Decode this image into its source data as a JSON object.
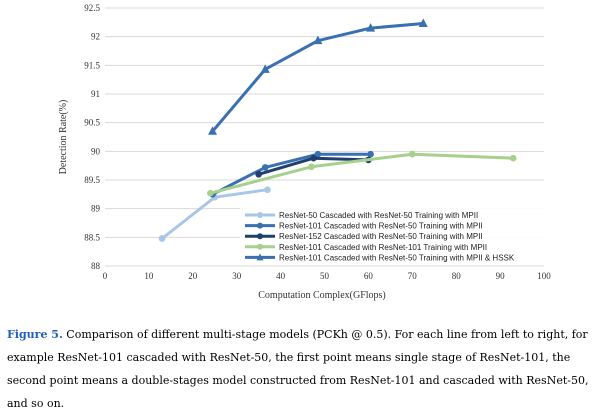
{
  "chart_data": {
    "type": "line",
    "xlabel": "Computation Complex(GFlops)",
    "ylabel": "Detection Rate(%)",
    "xlim": [
      0,
      100
    ],
    "ylim": [
      88,
      92.5
    ],
    "xticks": [
      "0",
      "10",
      "20",
      "30",
      "40",
      "50",
      "60",
      "70",
      "80",
      "90",
      "100"
    ],
    "yticks": [
      "88",
      "88.5",
      "89",
      "89.5",
      "90",
      "90.5",
      "91",
      "91.5",
      "92",
      "92.5"
    ],
    "grid": "horizontal",
    "legend_position": "bottom-right",
    "series": [
      {
        "name": "ResNet-50  Cascaded with ResNet-50  Training with MPII",
        "color": "#a8c6e6",
        "marker": "circle",
        "x": [
          13,
          25,
          37
        ],
        "y": [
          88.48,
          89.2,
          89.33
        ]
      },
      {
        "name": "ResNet-101 Cascaded with ResNet-50  Training with MPII",
        "color": "#3a6fb0",
        "marker": "circle",
        "x": [
          24.5,
          36.5,
          48.5,
          60.5
        ],
        "y": [
          89.25,
          89.72,
          89.95,
          89.95
        ]
      },
      {
        "name": "ResNet-152 Cascaded with ResNet-50  Training with MPII",
        "color": "#1f3f6e",
        "marker": "circle",
        "x": [
          35,
          47.5,
          60
        ],
        "y": [
          89.6,
          89.88,
          89.85
        ]
      },
      {
        "name": "ResNet-101 Cascaded with ResNet-101 Training with MPII",
        "color": "#a7d08c",
        "marker": "circle",
        "x": [
          24,
          47,
          70,
          93
        ],
        "y": [
          89.27,
          89.73,
          89.95,
          89.88
        ]
      },
      {
        "name": "ResNet-101 Cascaded with ResNet-50  Training with MPII & HSSK",
        "color": "#3a6fb0",
        "marker": "triangle",
        "x": [
          24.5,
          36.5,
          48.5,
          60.5,
          72.5
        ],
        "y": [
          90.35,
          91.43,
          91.93,
          92.15,
          92.23
        ]
      }
    ]
  },
  "caption": {
    "figure_label": "Figure 5.",
    "text": " Comparison of different multi-stage models (PCKh @ 0.5). For each line from left to right, for example ResNet-101 cascaded with ResNet-50, the first point means single stage of ResNet-101, the second point means a double-stages model constructed from ResNet-101 and cascaded with ResNet-50, and so on."
  }
}
